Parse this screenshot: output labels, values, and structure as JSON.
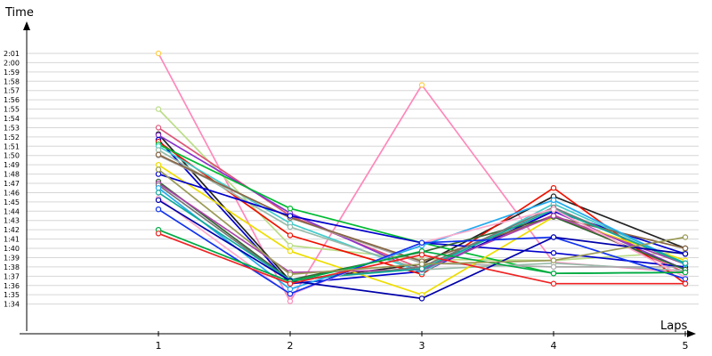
{
  "chart_data": {
    "type": "line",
    "xlabel": "Laps",
    "ylabel": "Time",
    "x": [
      1,
      2,
      3,
      4,
      5
    ],
    "ylim_seconds": [
      93,
      122
    ],
    "y_tick_labels": [
      "1:34",
      "1:35",
      "1:36",
      "1:37",
      "1:38",
      "1:39",
      "1:40",
      "1:41",
      "1:42",
      "1:43",
      "1:44",
      "1:45",
      "1:46",
      "1:47",
      "1:48",
      "1:49",
      "1:50",
      "1:51",
      "1:52",
      "1:53",
      "1:54",
      "1:55",
      "1:56",
      "1:57",
      "1:58",
      "1:59",
      "2:00",
      "2:01"
    ],
    "grid": true,
    "legend": "none",
    "series": [
      {
        "color": "#ff88bb",
        "values": [
          "2:01.0",
          "1:34.3",
          "1:57.6",
          "1:38.5",
          "1:37.4"
        ],
        "marker_color": "#ffcc44"
      },
      {
        "color": "#bbdd88",
        "values": [
          "1:55.0",
          "1:40.3",
          "1:38.8",
          "1:38.7",
          "1:39.6"
        ]
      },
      {
        "color": "#dd5577",
        "values": [
          "1:53.0",
          "1:43.5",
          "1:37.8",
          "1:43.6",
          "1:37.4"
        ]
      },
      {
        "color": "#222222",
        "values": [
          "1:52.3",
          "1:36.5",
          "1:38.3",
          "1:45.6",
          "1:40.0"
        ]
      },
      {
        "color": "#8833cc",
        "values": [
          "1:52.2",
          "1:43.8",
          "1:37.4",
          "1:44.0",
          "1:37.7"
        ]
      },
      {
        "color": "#0000cc",
        "values": [
          "1:51.7",
          "1:36.2",
          "1:37.5",
          "1:44.0",
          "1:39.4"
        ]
      },
      {
        "color": "#ee1100",
        "values": [
          "1:51.5",
          "1:41.4",
          "1:37.2",
          "1:46.5",
          "1:36.2"
        ]
      },
      {
        "color": "#00bb33",
        "values": [
          "1:51.2",
          "1:44.3",
          "1:40.6",
          "1:37.3",
          "1:37.4"
        ]
      },
      {
        "color": "#44cccc",
        "values": [
          "1:51.0",
          "1:42.7",
          "1:37.4",
          "1:44.8",
          "1:38.4"
        ]
      },
      {
        "color": "#99bbaa",
        "values": [
          "1:50.6",
          "1:42.3",
          "1:37.7",
          "1:38.4",
          "1:37.6"
        ]
      },
      {
        "color": "#aaaaaa",
        "values": [
          "1:50.0",
          "1:43.3",
          "1:38.4",
          "1:38.0",
          "1:38.0"
        ]
      },
      {
        "color": "#886644",
        "values": [
          "1:50.1",
          "1:43.3",
          "1:38.6",
          "1:43.4",
          "1:40.0"
        ]
      },
      {
        "color": "#eedd00",
        "values": [
          "1:49.0",
          "1:39.7",
          "1:35.0",
          "1:43.4",
          "1:38.7"
        ]
      },
      {
        "color": "#0000cc",
        "values": [
          "1:48.0",
          "1:43.5",
          "1:40.6",
          "1:39.5",
          "1:38.0"
        ]
      },
      {
        "color": "#336633",
        "values": [
          "1:47.2",
          "1:36.6",
          "1:39.6",
          "1:43.4",
          "1:37.7"
        ]
      },
      {
        "color": "#aa44aa",
        "values": [
          "1:47.0",
          "1:37.4",
          "1:37.7",
          "1:43.5",
          "1:38.3"
        ]
      },
      {
        "color": "#777777",
        "values": [
          "1:46.8",
          "1:36.5",
          "1:38.0",
          "1:44.4",
          "1:38.3"
        ]
      },
      {
        "color": "#22aaee",
        "values": [
          "1:46.5",
          "1:35.6",
          "1:40.3",
          "1:45.2",
          "1:38.3"
        ]
      },
      {
        "color": "#11aa99",
        "values": [
          "1:46.0",
          "1:36.6",
          "1:37.8",
          "1:44.2",
          "1:38.4"
        ]
      },
      {
        "color": "#ffaacc",
        "values": [
          "1:45.4",
          "1:35.0",
          "1:40.6",
          "1:44.2",
          "1:36.9"
        ]
      },
      {
        "color": "#1133ee",
        "values": [
          "1:44.2",
          "1:35.1",
          "1:40.6",
          "1:41.2",
          "1:36.7"
        ]
      },
      {
        "color": "#0000aa",
        "values": [
          "1:45.2",
          "1:36.5",
          "1:34.6",
          "1:41.2",
          "1:39.4"
        ]
      },
      {
        "color": "#00aa44",
        "values": [
          "1:42.0",
          "1:36.4",
          "1:39.7",
          "1:37.3",
          "1:37.4"
        ]
      },
      {
        "color": "#ee2222",
        "values": [
          "1:41.6",
          "1:36.2",
          "1:39.3",
          "1:36.2",
          "1:36.2"
        ]
      },
      {
        "color": "#999955",
        "values": [
          "1:48.5",
          "1:37.2",
          "1:38.3",
          "1:38.7",
          "1:41.2"
        ]
      }
    ]
  }
}
